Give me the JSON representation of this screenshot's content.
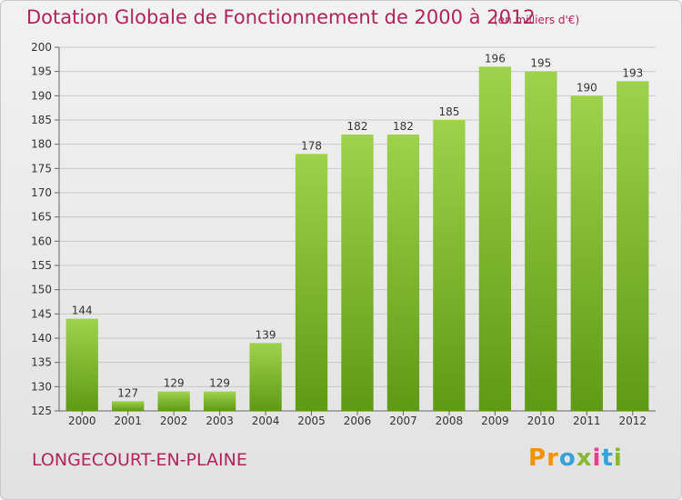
{
  "header": {
    "title": "Dotation Globale de Fonctionnement de 2000 à 2012",
    "unit": "(en milliers d'€)"
  },
  "commune": "LONGECOURT-EN-PLAINE",
  "logo": {
    "text": "Proxiti",
    "letter_colors": [
      "#f39200",
      "#f39200",
      "#3aa0d8",
      "#8ab833",
      "#e83e8c",
      "#3aa0d8",
      "#8ab833"
    ]
  },
  "colors": {
    "bar_top": "#9ed24c",
    "bar_bottom": "#5f9a14",
    "grid": "#c9c9c9",
    "title": "#b0245a"
  },
  "chart_data": {
    "type": "bar",
    "categories": [
      "2000",
      "2001",
      "2002",
      "2003",
      "2004",
      "2005",
      "2006",
      "2007",
      "2008",
      "2009",
      "2010",
      "2011",
      "2012"
    ],
    "values": [
      144,
      127,
      129,
      129,
      139,
      178,
      182,
      182,
      185,
      196,
      195,
      190,
      193
    ],
    "ylim": [
      125,
      200
    ],
    "yticks": [
      125,
      130,
      135,
      140,
      145,
      150,
      155,
      160,
      165,
      170,
      175,
      180,
      185,
      190,
      195,
      200
    ],
    "grid": true
  }
}
